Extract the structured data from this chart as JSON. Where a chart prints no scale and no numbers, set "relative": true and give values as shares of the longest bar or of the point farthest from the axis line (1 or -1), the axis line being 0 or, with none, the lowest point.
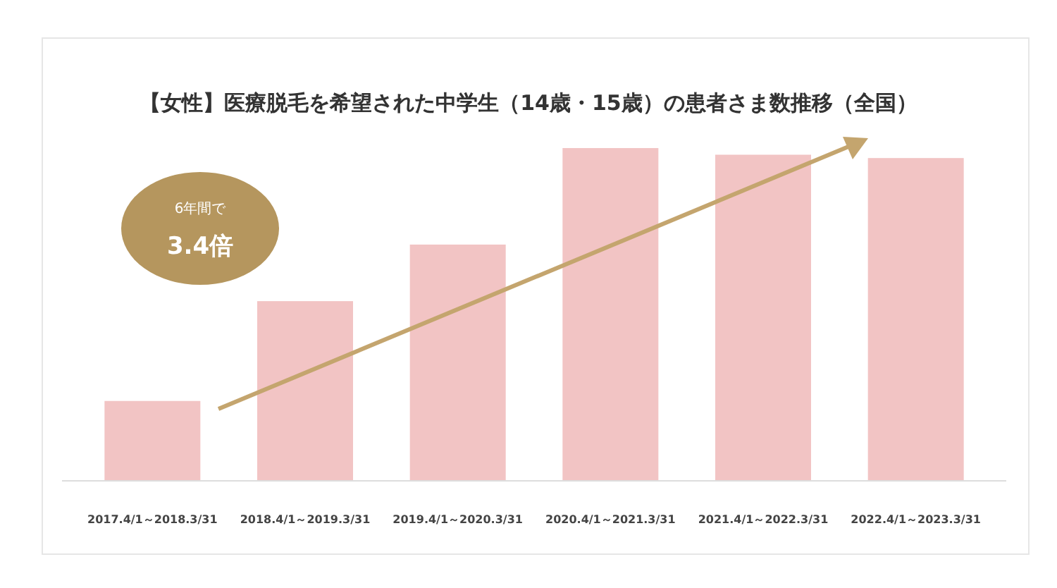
{
  "chart_data": {
    "type": "bar",
    "title": "【女性】医療脱毛を希望された中学生（14歳・15歳）の患者さま数推移（全国）",
    "categories": [
      "2017.4/1～2018.3/31",
      "2018.4/1～2019.3/31",
      "2019.4/1～2020.3/31",
      "2020.4/1～2021.3/31",
      "2021.4/1～2022.3/31",
      "2022.4/1～2023.3/31"
    ],
    "values": [
      0.24,
      0.54,
      0.71,
      1,
      0.98,
      0.97
    ],
    "relative": true,
    "color": "#f2c4c4",
    "annotations": [
      "6年間で",
      "3.4倍"
    ]
  }
}
